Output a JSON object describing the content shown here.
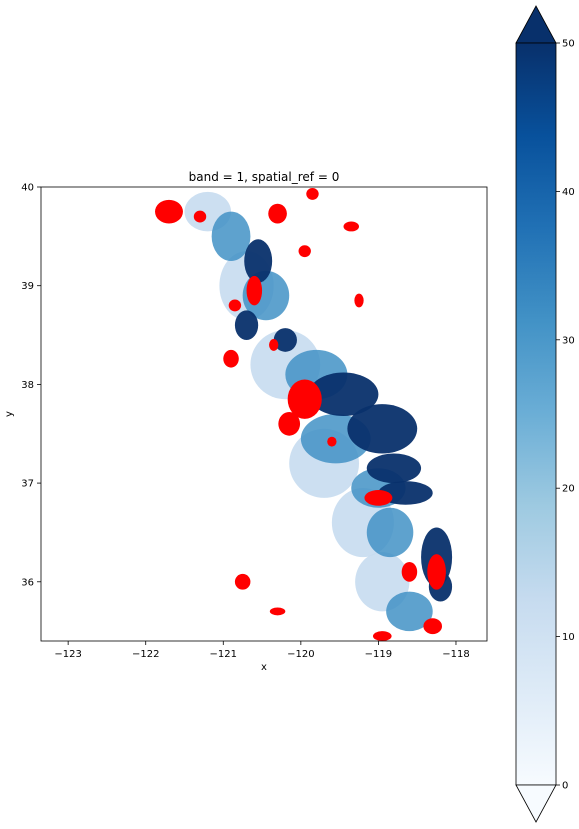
{
  "chart_data": {
    "type": "heatmap",
    "title": "band = 1, spatial_ref = 0",
    "xlabel": "x",
    "ylabel": "y",
    "xlim": [
      -123.35,
      -117.6
    ],
    "ylim": [
      35.4,
      40.0
    ],
    "x_ticks": [
      -123,
      -122,
      -121,
      -120,
      -119,
      -118
    ],
    "y_ticks": [
      36,
      37,
      38,
      39,
      40
    ],
    "x_tick_labels": [
      "−123",
      "−122",
      "−121",
      "−120",
      "−119",
      "−118"
    ],
    "y_tick_labels": [
      "36",
      "37",
      "38",
      "39",
      "40"
    ],
    "grid": false,
    "colorbar": {
      "cmap": "Blues",
      "vmin": 0,
      "vmax": 50,
      "extend": "both",
      "ticks": [
        0,
        10,
        20,
        30,
        40,
        50
      ],
      "tick_labels": [
        "0",
        "10",
        "20",
        "30",
        "40",
        "50"
      ],
      "colors": [
        "#f7fbff",
        "#deebf7",
        "#c6dbef",
        "#9ecae1",
        "#6baed6",
        "#4292c6",
        "#2171b5",
        "#08519c",
        "#08306b"
      ]
    },
    "overlay_color": "#ff0000",
    "overlay_light_color": "#f4a6a6",
    "regions": {
      "high_value": [
        {
          "x": -120.55,
          "y": 39.25,
          "rx": 0.18,
          "ry": 0.22
        },
        {
          "x": -120.7,
          "y": 38.6,
          "rx": 0.15,
          "ry": 0.15
        },
        {
          "x": -120.2,
          "y": 38.45,
          "rx": 0.15,
          "ry": 0.12
        },
        {
          "x": -119.45,
          "y": 37.9,
          "rx": 0.45,
          "ry": 0.22
        },
        {
          "x": -118.95,
          "y": 37.55,
          "rx": 0.45,
          "ry": 0.25
        },
        {
          "x": -118.8,
          "y": 37.15,
          "rx": 0.35,
          "ry": 0.15
        },
        {
          "x": -118.65,
          "y": 36.9,
          "rx": 0.35,
          "ry": 0.12
        },
        {
          "x": -118.25,
          "y": 36.25,
          "rx": 0.2,
          "ry": 0.3
        },
        {
          "x": -118.2,
          "y": 35.95,
          "rx": 0.15,
          "ry": 0.15
        }
      ],
      "medium_value": [
        {
          "x": -120.9,
          "y": 39.5,
          "rx": 0.25,
          "ry": 0.25
        },
        {
          "x": -120.45,
          "y": 38.9,
          "rx": 0.3,
          "ry": 0.25
        },
        {
          "x": -119.8,
          "y": 38.1,
          "rx": 0.4,
          "ry": 0.25
        },
        {
          "x": -119.55,
          "y": 37.45,
          "rx": 0.45,
          "ry": 0.25
        },
        {
          "x": -119.0,
          "y": 36.95,
          "rx": 0.35,
          "ry": 0.2
        },
        {
          "x": -118.85,
          "y": 36.5,
          "rx": 0.3,
          "ry": 0.25
        },
        {
          "x": -118.6,
          "y": 35.7,
          "rx": 0.3,
          "ry": 0.2
        }
      ],
      "low_value": [
        {
          "x": -121.2,
          "y": 39.75,
          "rx": 0.3,
          "ry": 0.2
        },
        {
          "x": -120.7,
          "y": 39.0,
          "rx": 0.35,
          "ry": 0.35
        },
        {
          "x": -120.2,
          "y": 38.2,
          "rx": 0.45,
          "ry": 0.35
        },
        {
          "x": -119.7,
          "y": 37.2,
          "rx": 0.45,
          "ry": 0.35
        },
        {
          "x": -119.2,
          "y": 36.6,
          "rx": 0.4,
          "ry": 0.35
        },
        {
          "x": -118.95,
          "y": 36.0,
          "rx": 0.35,
          "ry": 0.3
        }
      ],
      "overlay": [
        {
          "x": -121.7,
          "y": 39.75,
          "rx": 0.18,
          "ry": 0.12
        },
        {
          "x": -121.3,
          "y": 39.7,
          "rx": 0.08,
          "ry": 0.06
        },
        {
          "x": -119.85,
          "y": 39.93,
          "rx": 0.08,
          "ry": 0.06
        },
        {
          "x": -119.35,
          "y": 39.6,
          "rx": 0.1,
          "ry": 0.05
        },
        {
          "x": -120.3,
          "y": 39.73,
          "rx": 0.12,
          "ry": 0.1
        },
        {
          "x": -120.6,
          "y": 38.95,
          "rx": 0.1,
          "ry": 0.15
        },
        {
          "x": -120.85,
          "y": 38.8,
          "rx": 0.08,
          "ry": 0.06
        },
        {
          "x": -119.95,
          "y": 39.35,
          "rx": 0.08,
          "ry": 0.06
        },
        {
          "x": -119.25,
          "y": 38.85,
          "rx": 0.06,
          "ry": 0.07
        },
        {
          "x": -120.9,
          "y": 38.26,
          "rx": 0.1,
          "ry": 0.09
        },
        {
          "x": -120.35,
          "y": 38.4,
          "rx": 0.06,
          "ry": 0.06
        },
        {
          "x": -119.95,
          "y": 37.85,
          "rx": 0.22,
          "ry": 0.2
        },
        {
          "x": -120.15,
          "y": 37.6,
          "rx": 0.14,
          "ry": 0.12
        },
        {
          "x": -119.6,
          "y": 37.42,
          "rx": 0.06,
          "ry": 0.05
        },
        {
          "x": -119.0,
          "y": 36.85,
          "rx": 0.18,
          "ry": 0.08
        },
        {
          "x": -118.25,
          "y": 36.1,
          "rx": 0.12,
          "ry": 0.18
        },
        {
          "x": -118.6,
          "y": 36.1,
          "rx": 0.1,
          "ry": 0.1
        },
        {
          "x": -118.3,
          "y": 35.55,
          "rx": 0.12,
          "ry": 0.08
        },
        {
          "x": -118.95,
          "y": 35.45,
          "rx": 0.12,
          "ry": 0.05
        },
        {
          "x": -120.3,
          "y": 35.7,
          "rx": 0.1,
          "ry": 0.04
        },
        {
          "x": -120.75,
          "y": 36.0,
          "rx": 0.1,
          "ry": 0.08
        }
      ]
    }
  }
}
